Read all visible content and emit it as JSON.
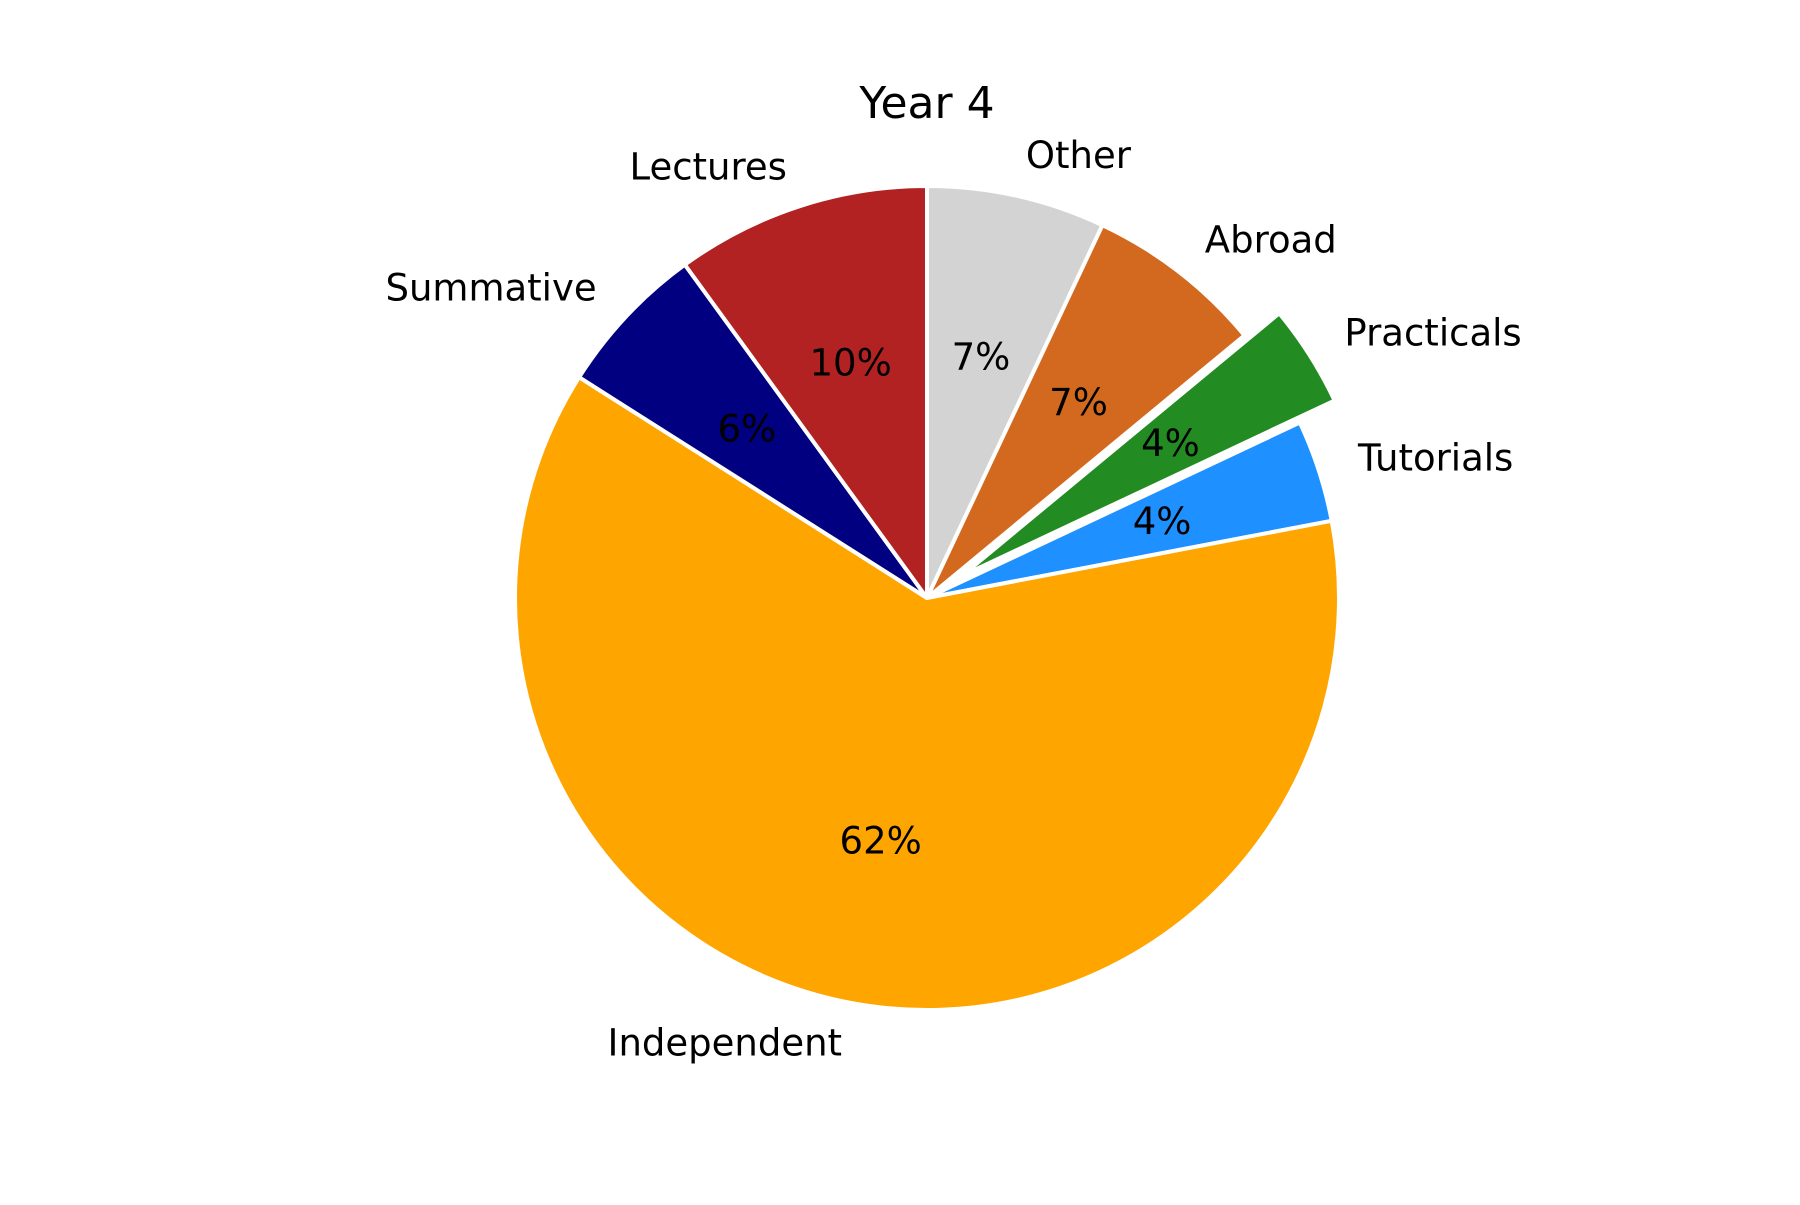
{
  "chart_data": {
    "type": "pie",
    "title": "Year 4",
    "start_angle_deg": 90,
    "direction": "clockwise",
    "slices": [
      {
        "label": "Other",
        "value": 7,
        "pct_label": "7%",
        "color": "#d3d3d3",
        "exploded": false
      },
      {
        "label": "Abroad",
        "value": 7,
        "pct_label": "7%",
        "color": "#d2691e",
        "exploded": false
      },
      {
        "label": "Practicals",
        "value": 4,
        "pct_label": "4%",
        "color": "#228b22",
        "exploded": true
      },
      {
        "label": "Tutorials",
        "value": 4,
        "pct_label": "4%",
        "color": "#1e90ff",
        "exploded": false
      },
      {
        "label": "Independent",
        "value": 62,
        "pct_label": "62%",
        "color": "#ffa500",
        "exploded": false
      },
      {
        "label": "Summative",
        "value": 6,
        "pct_label": "6%",
        "color": "#000080",
        "exploded": false
      },
      {
        "label": "Lectures",
        "value": 10,
        "pct_label": "10%",
        "color": "#b22222",
        "exploded": false
      }
    ]
  }
}
